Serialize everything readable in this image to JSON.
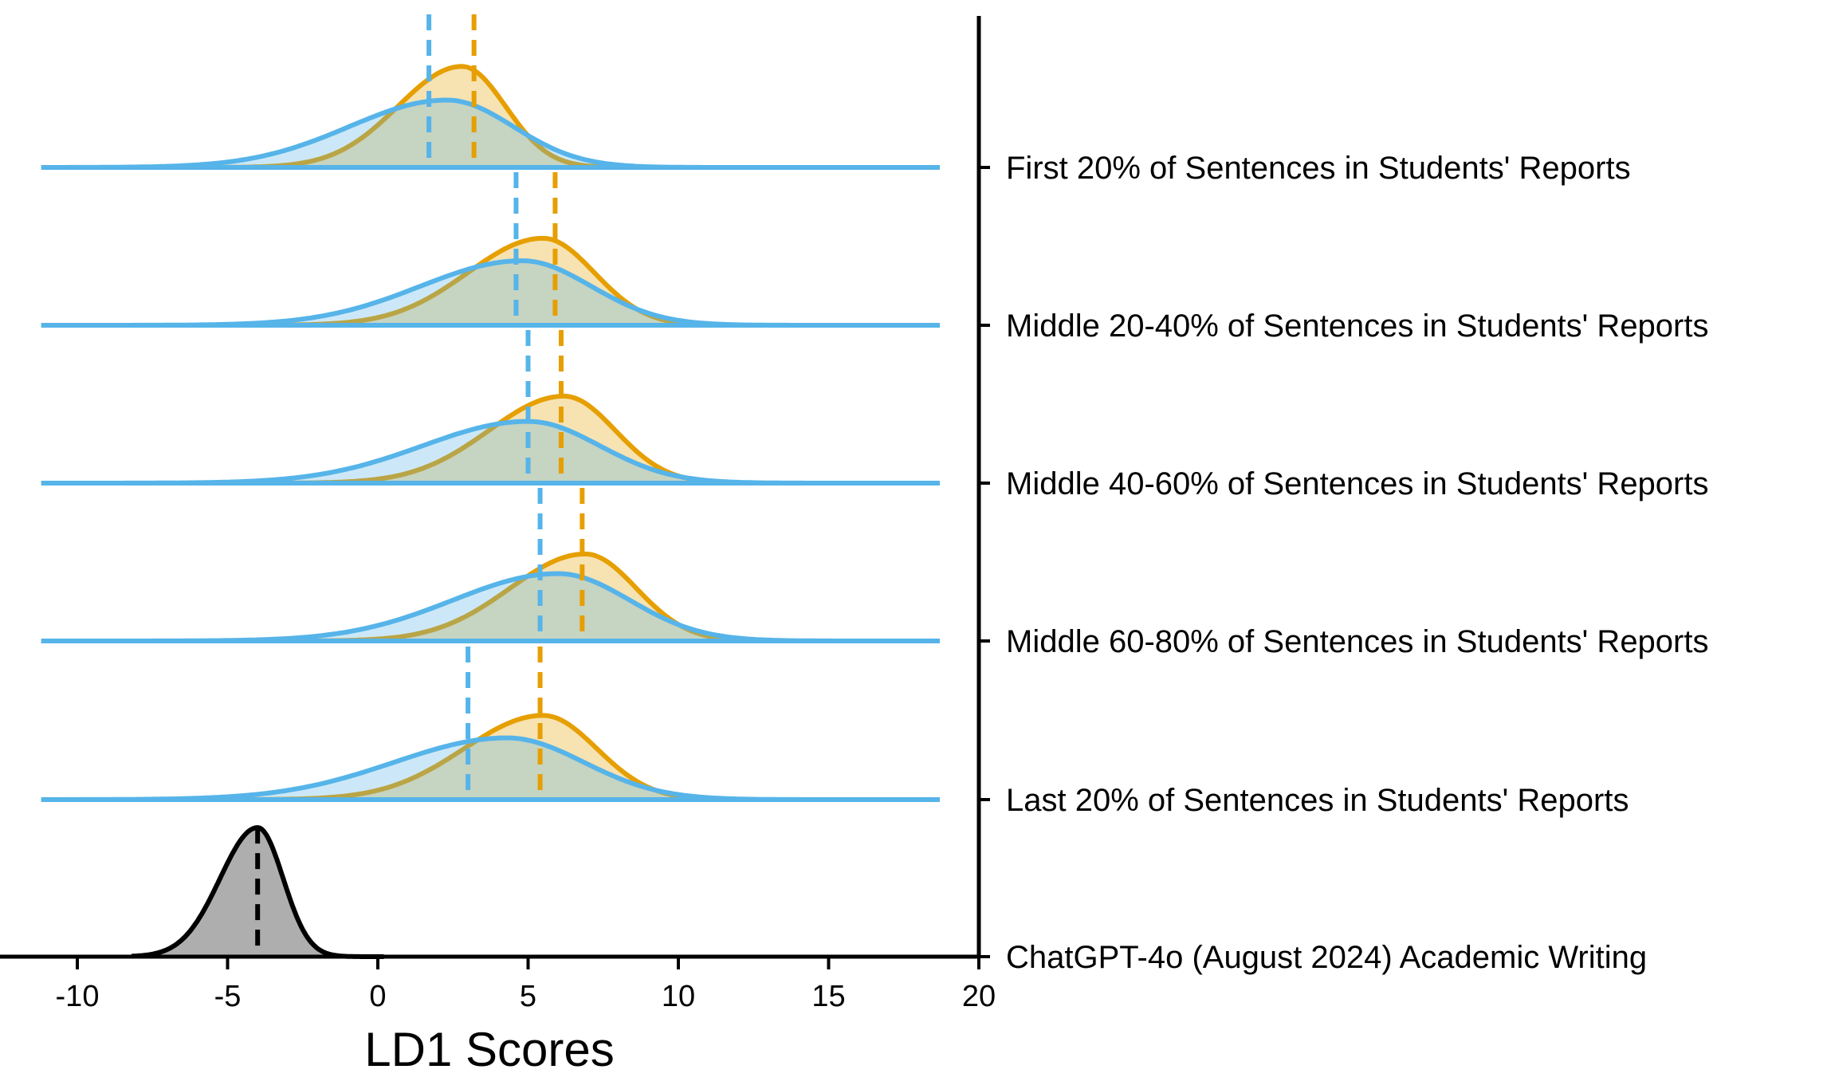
{
  "chart_data": {
    "type": "ridgeline-density",
    "title": "",
    "xlabel": "LD1 Scores",
    "ylabel": "",
    "xlim": [
      -12.5,
      20
    ],
    "x_ticks": [
      -10,
      -5,
      0,
      5,
      10,
      15,
      20
    ],
    "x_tick_labels": [
      "-10",
      "-5",
      "0",
      "5",
      "10",
      "15",
      "20"
    ],
    "grid": false,
    "density_range": [
      -11.2,
      18.7
    ],
    "colors": {
      "orange": "#E69F00",
      "blue": "#56B4E9",
      "gray": "#000000"
    },
    "rows": [
      {
        "label": "First 20% of Sentences in Students' Reports",
        "series": [
          {
            "name": "orange",
            "mean": 3.2,
            "peak_x": 2.8,
            "sd": 1.7,
            "peak": 0.72
          },
          {
            "name": "blue",
            "mean": 1.7,
            "peak_x": 2.3,
            "sd": 2.6,
            "peak": 0.48
          }
        ]
      },
      {
        "label": "Middle 20-40% of Sentences in Students' Reports",
        "series": [
          {
            "name": "orange",
            "mean": 5.9,
            "peak_x": 5.5,
            "sd": 2.0,
            "peak": 0.62
          },
          {
            "name": "blue",
            "mean": 4.6,
            "peak_x": 4.8,
            "sd": 2.7,
            "peak": 0.46
          }
        ]
      },
      {
        "label": "Middle 40-60% of Sentences in Students' Reports",
        "series": [
          {
            "name": "orange",
            "mean": 6.1,
            "peak_x": 6.2,
            "sd": 2.0,
            "peak": 0.62
          },
          {
            "name": "blue",
            "mean": 5.0,
            "peak_x": 5.0,
            "sd": 2.8,
            "peak": 0.44
          }
        ]
      },
      {
        "label": "Middle 60-80% of Sentences in Students' Reports",
        "series": [
          {
            "name": "orange",
            "mean": 6.8,
            "peak_x": 6.9,
            "sd": 2.0,
            "peak": 0.62
          },
          {
            "name": "blue",
            "mean": 5.4,
            "peak_x": 6.0,
            "sd": 2.8,
            "peak": 0.48
          }
        ]
      },
      {
        "label": "Last 20% of Sentences in Students' Reports",
        "series": [
          {
            "name": "orange",
            "mean": 5.4,
            "peak_x": 5.5,
            "sd": 2.1,
            "peak": 0.6
          },
          {
            "name": "blue",
            "mean": 3.0,
            "peak_x": 4.3,
            "sd": 3.0,
            "peak": 0.44
          }
        ]
      },
      {
        "label": "ChatGPT-4o (August 2024) Academic Writing",
        "series": [
          {
            "name": "gray",
            "mean": -4.0,
            "peak_x": -4.0,
            "sd": 1.0,
            "peak": 0.92
          }
        ]
      }
    ]
  }
}
